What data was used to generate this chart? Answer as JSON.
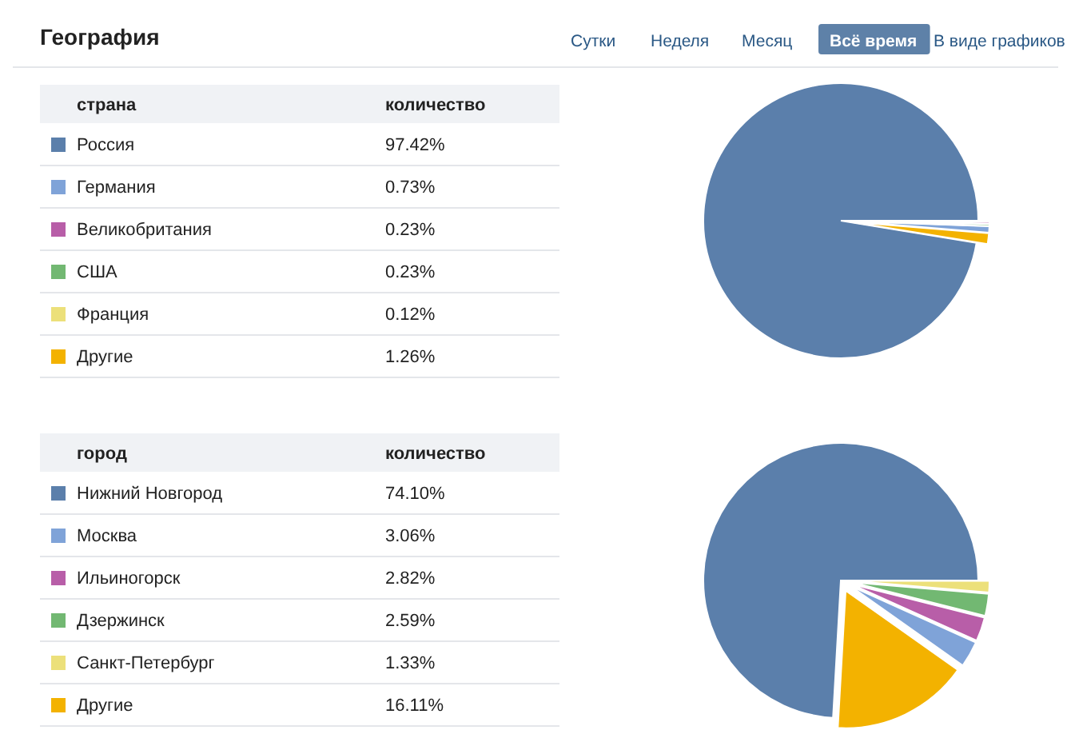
{
  "chart_data": [
    {
      "type": "pie",
      "title": "География",
      "legend_title": "страна",
      "legend": "left",
      "annotations": [
        "количество",
        "Сутки",
        "Неделя",
        "Месяц",
        "Всё время",
        "В виде графиков"
      ],
      "categories": [
        "Россия",
        "Германия",
        "Великобритания",
        "США",
        "Франция",
        "Другие"
      ],
      "values": [
        97.42,
        0.73,
        0.23,
        0.23,
        0.12,
        1.26
      ],
      "value_labels": [
        "97.42%",
        "0.73%",
        "0.23%",
        "0.23%",
        "0.12%",
        "1.26%"
      ],
      "colors": [
        "#5b7fab",
        "#7fa3d8",
        "#b85ea8",
        "#72b872",
        "#ece07a",
        "#f3b200"
      ]
    },
    {
      "type": "pie",
      "legend_title": "город",
      "legend": "left",
      "annotations": [
        "количество"
      ],
      "categories": [
        "Нижний Новгород",
        "Москва",
        "Ильиногорск",
        "Дзержинск",
        "Санкт-Петербург",
        "Другие"
      ],
      "values": [
        74.1,
        3.06,
        2.82,
        2.59,
        1.33,
        16.11
      ],
      "value_labels": [
        "74.10%",
        "3.06%",
        "2.82%",
        "2.59%",
        "1.33%",
        "16.11%"
      ],
      "colors": [
        "#5b7fab",
        "#7fa3d8",
        "#b85ea8",
        "#72b872",
        "#ece07a",
        "#f3b200"
      ]
    }
  ]
}
